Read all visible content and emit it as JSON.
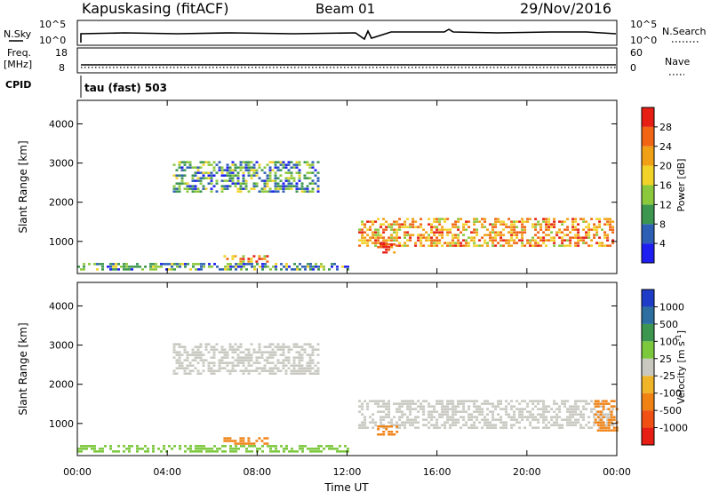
{
  "header": {
    "station": "Kapuskasing (fitACF)",
    "beam": "Beam 01",
    "date": "29/Nov/2016"
  },
  "status_panels": {
    "nsky": {
      "label": "N.Sky",
      "ticks": [
        "10^5",
        "10^0"
      ]
    },
    "nsearch": {
      "label": "N.Search",
      "ticks": [
        "10^5",
        "10^0"
      ]
    },
    "freq": {
      "label": "Freq.",
      "unit": "[MHz]",
      "ticks": [
        "18",
        "8"
      ]
    },
    "nave": {
      "label": "Nave",
      "ticks": [
        "60",
        "0"
      ]
    },
    "cpid": {
      "label": "CPID",
      "value": "tau (fast) 503"
    }
  },
  "chart_data": [
    {
      "type": "heatmap",
      "name_text": "Power",
      "parameter": "Power [dB]",
      "ylabel": "Slant Range [km]",
      "xlabel": "Time UT",
      "x_ticks": [
        "00:00",
        "04:00",
        "08:00",
        "12:00",
        "16:00",
        "20:00",
        "00:00"
      ],
      "y_ticks": [
        1000,
        2000,
        3000,
        4000
      ],
      "ylim": [
        180,
        4600
      ],
      "colorbar": {
        "label": "Power [dB]",
        "ticks": [
          "4",
          "8",
          "12",
          "16",
          "20",
          "24",
          "28"
        ],
        "colors": [
          "#1e1ef0",
          "#2d5fb4",
          "#3c9650",
          "#8cc83c",
          "#f0d228",
          "#f0a014",
          "#f06414",
          "#e61e14"
        ]
      },
      "echo_regions": [
        {
          "t_start": "04:15",
          "t_end": "10:45",
          "range_km": [
            2250,
            3050
          ],
          "level_db": 8
        },
        {
          "t_start": "12:30",
          "t_end": "23:50",
          "range_km": [
            900,
            1600
          ],
          "level_db": 20
        },
        {
          "t_start": "13:20",
          "t_end": "14:10",
          "range_km": [
            700,
            950
          ],
          "level_db": 26
        },
        {
          "t_start": "06:30",
          "t_end": "08:30",
          "range_km": [
            450,
            650
          ],
          "level_db": 18
        },
        {
          "t_start": "00:00",
          "t_end": "12:00",
          "range_km": [
            250,
            450
          ],
          "level_db": 6
        }
      ]
    },
    {
      "type": "heatmap",
      "name_text": "Velocity",
      "parameter": "Velocity [m s-1]",
      "ylabel": "Slant Range [km]",
      "xlabel": "Time UT",
      "x_ticks": [
        "00:00",
        "04:00",
        "08:00",
        "12:00",
        "16:00",
        "20:00",
        "00:00"
      ],
      "y_ticks": [
        1000,
        2000,
        3000,
        4000
      ],
      "ylim": [
        180,
        4600
      ],
      "colorbar": {
        "label": "Velocity [m s",
        "label_sup": "-1",
        "label_end": "]",
        "ticks": [
          "1000",
          "500",
          "100",
          "25",
          "-25",
          "-100",
          "-500",
          "-1000"
        ],
        "colors": [
          "#1e3cc8",
          "#2d6ea0",
          "#3c9650",
          "#7cc83c",
          "#c8c8c0",
          "#f0b428",
          "#f08214",
          "#f05014",
          "#e61e14"
        ]
      },
      "echo_regions": [
        {
          "t_start": "04:15",
          "t_end": "10:45",
          "range_km": [
            2250,
            3050
          ],
          "velocity": 0
        },
        {
          "t_start": "12:30",
          "t_end": "23:50",
          "range_km": [
            900,
            1600
          ],
          "velocity": 0
        },
        {
          "t_start": "13:20",
          "t_end": "14:10",
          "range_km": [
            700,
            950
          ],
          "velocity": -100
        },
        {
          "t_start": "06:30",
          "t_end": "08:30",
          "range_km": [
            450,
            650
          ],
          "velocity": -100
        },
        {
          "t_start": "23:00",
          "t_end": "24:00",
          "range_km": [
            800,
            1600
          ],
          "velocity": -100
        },
        {
          "t_start": "00:00",
          "t_end": "12:00",
          "range_km": [
            250,
            450
          ],
          "velocity": 25
        }
      ]
    }
  ],
  "colors": {
    "axis": "#000000",
    "background": "#ffffff",
    "ground_scatter": "#c8c8c0"
  }
}
